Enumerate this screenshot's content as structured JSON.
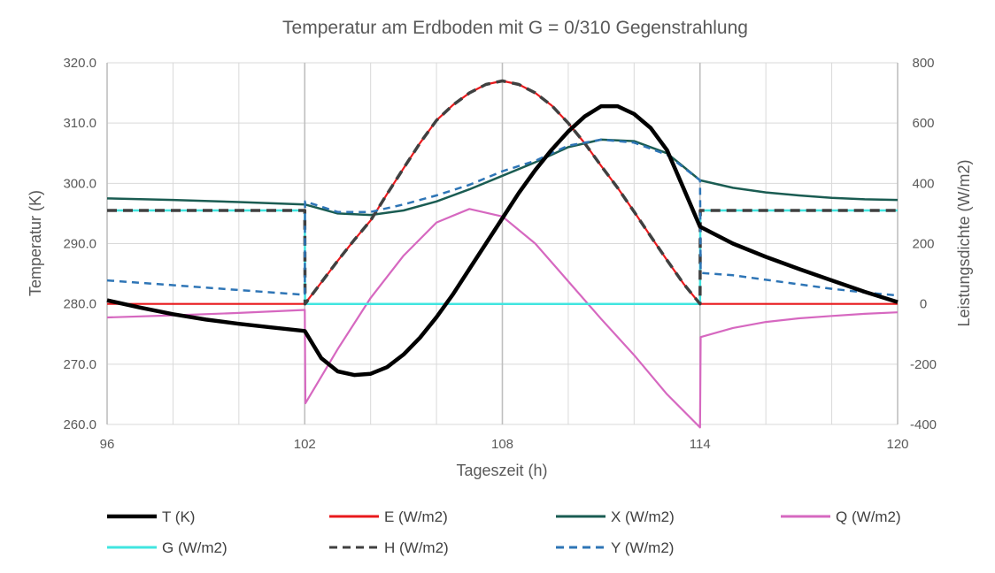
{
  "chart_data": {
    "type": "line",
    "title": "Temperatur am Erdboden mit G = 0/310 Gegenstrahlung",
    "xlabel": "Tageszeit (h)",
    "ylabel": "Temperatur (K)",
    "y2label": "Leistungsdichte  (W/m2)",
    "xlim": [
      96,
      120
    ],
    "ylim": [
      260,
      320
    ],
    "y2lim": [
      -400,
      800
    ],
    "x_ticks": [
      96,
      102,
      108,
      114,
      120
    ],
    "x_tick_labels": [
      "96",
      "102",
      "108",
      "114",
      "120"
    ],
    "y_ticks": [
      260,
      270,
      280,
      290,
      300,
      310,
      320
    ],
    "y_tick_labels": [
      "260.0",
      "270.0",
      "280.0",
      "290.0",
      "300.0",
      "310.0",
      "320.0"
    ],
    "y2_ticks": [
      -400,
      -200,
      0,
      200,
      400,
      600,
      800
    ],
    "y2_tick_labels": [
      "-400",
      "-200",
      "0",
      "200",
      "400",
      "600",
      "800"
    ],
    "grid": true,
    "legend_position": "bottom",
    "series": [
      {
        "name": "T (K)",
        "axis": "left",
        "color": "#000000",
        "dash": "solid",
        "points": [
          [
            96,
            280.6
          ],
          [
            97,
            279.4
          ],
          [
            98,
            278.3
          ],
          [
            99,
            277.4
          ],
          [
            100,
            276.7
          ],
          [
            101,
            276.1
          ],
          [
            102,
            275.5
          ],
          [
            102.5,
            271.0
          ],
          [
            103,
            268.8
          ],
          [
            103.5,
            268.2
          ],
          [
            104,
            268.4
          ],
          [
            104.5,
            269.5
          ],
          [
            105,
            271.6
          ],
          [
            105.5,
            274.4
          ],
          [
            106,
            277.8
          ],
          [
            106.5,
            281.6
          ],
          [
            107,
            285.8
          ],
          [
            107.5,
            290.0
          ],
          [
            108,
            294.2
          ],
          [
            108.5,
            298.4
          ],
          [
            109,
            302.2
          ],
          [
            109.5,
            305.6
          ],
          [
            110,
            308.6
          ],
          [
            110.5,
            311.1
          ],
          [
            111,
            312.8
          ],
          [
            111.5,
            312.8
          ],
          [
            112,
            311.5
          ],
          [
            112.5,
            309.2
          ],
          [
            113,
            305.5
          ],
          [
            113.5,
            299.2
          ],
          [
            114,
            292.8
          ],
          [
            115,
            290.0
          ],
          [
            116,
            287.8
          ],
          [
            117,
            285.8
          ],
          [
            118,
            283.9
          ],
          [
            119,
            282.0
          ],
          [
            120,
            280.3
          ]
        ]
      },
      {
        "name": "E (W/m2)",
        "axis": "right",
        "color": "#e8191c",
        "dash": "solid",
        "points": [
          [
            96,
            0
          ],
          [
            102,
            0
          ],
          [
            102.5,
            71
          ],
          [
            103,
            143
          ],
          [
            103.5,
            212
          ],
          [
            104,
            277
          ],
          [
            104.5,
            365
          ],
          [
            105,
            450
          ],
          [
            105.5,
            534
          ],
          [
            106,
            609
          ],
          [
            106.5,
            660
          ],
          [
            107,
            700
          ],
          [
            107.5,
            728
          ],
          [
            108,
            740
          ],
          [
            108.5,
            728
          ],
          [
            109,
            700
          ],
          [
            109.5,
            658
          ],
          [
            110,
            600
          ],
          [
            110.5,
            533
          ],
          [
            111,
            458
          ],
          [
            111.5,
            385
          ],
          [
            112,
            306
          ],
          [
            112.5,
            225
          ],
          [
            113,
            145
          ],
          [
            113.5,
            67
          ],
          [
            114,
            0
          ],
          [
            120,
            0
          ]
        ]
      },
      {
        "name": "X (W/m2)",
        "axis": "right",
        "color": "#1a5c52",
        "dash": "solid",
        "points": [
          [
            96,
            350
          ],
          [
            98,
            345
          ],
          [
            100,
            338
          ],
          [
            102,
            330
          ],
          [
            103,
            300
          ],
          [
            104,
            295
          ],
          [
            105,
            310
          ],
          [
            106,
            340
          ],
          [
            107,
            380
          ],
          [
            108,
            425
          ],
          [
            109,
            470
          ],
          [
            110,
            520
          ],
          [
            111,
            545
          ],
          [
            112,
            540
          ],
          [
            113,
            500
          ],
          [
            114,
            410
          ],
          [
            115,
            385
          ],
          [
            116,
            370
          ],
          [
            117,
            360
          ],
          [
            118,
            352
          ],
          [
            119,
            347
          ],
          [
            120,
            345
          ]
        ]
      },
      {
        "name": "Q (W/m2)",
        "axis": "right",
        "color": "#d668c0",
        "dash": "solid",
        "points": [
          [
            96,
            -45
          ],
          [
            98,
            -38
          ],
          [
            100,
            -30
          ],
          [
            102,
            -20
          ],
          [
            102.02,
            -330
          ],
          [
            103,
            -150
          ],
          [
            104,
            20
          ],
          [
            105,
            160
          ],
          [
            106,
            270
          ],
          [
            107,
            315
          ],
          [
            108,
            290
          ],
          [
            109,
            200
          ],
          [
            110,
            75
          ],
          [
            111,
            -50
          ],
          [
            112,
            -170
          ],
          [
            113,
            -300
          ],
          [
            114,
            -410
          ],
          [
            114.02,
            -110
          ],
          [
            115,
            -80
          ],
          [
            116,
            -60
          ],
          [
            117,
            -48
          ],
          [
            118,
            -40
          ],
          [
            119,
            -33
          ],
          [
            120,
            -28
          ]
        ]
      },
      {
        "name": "G (W/m2)",
        "axis": "right",
        "color": "#41e5e0",
        "dash": "solid",
        "points": [
          [
            96,
            310
          ],
          [
            102,
            310
          ],
          [
            102.01,
            0
          ],
          [
            114,
            0
          ],
          [
            114.01,
            310
          ],
          [
            120,
            310
          ]
        ]
      },
      {
        "name": "H (W/m2)",
        "axis": "right",
        "color": "#404040",
        "dash": "dash",
        "points": [
          [
            96,
            310
          ],
          [
            102,
            310
          ],
          [
            102.01,
            0
          ],
          [
            102.5,
            71
          ],
          [
            103,
            143
          ],
          [
            103.5,
            212
          ],
          [
            104,
            277
          ],
          [
            104.5,
            365
          ],
          [
            105,
            450
          ],
          [
            105.5,
            534
          ],
          [
            106,
            609
          ],
          [
            106.5,
            660
          ],
          [
            107,
            700
          ],
          [
            107.5,
            728
          ],
          [
            108,
            740
          ],
          [
            108.5,
            728
          ],
          [
            109,
            700
          ],
          [
            109.5,
            658
          ],
          [
            110,
            600
          ],
          [
            110.5,
            533
          ],
          [
            111,
            458
          ],
          [
            111.5,
            385
          ],
          [
            112,
            306
          ],
          [
            112.5,
            225
          ],
          [
            113,
            145
          ],
          [
            113.5,
            67
          ],
          [
            114,
            0
          ],
          [
            114.01,
            310
          ],
          [
            120,
            310
          ]
        ]
      },
      {
        "name": "Y (W/m2)",
        "axis": "right",
        "color": "#2e75b6",
        "dash": "dash",
        "points": [
          [
            96,
            78
          ],
          [
            98,
            62
          ],
          [
            100,
            46
          ],
          [
            102,
            30
          ],
          [
            102.01,
            340
          ],
          [
            103,
            305
          ],
          [
            104,
            305
          ],
          [
            105,
            330
          ],
          [
            106,
            360
          ],
          [
            107,
            395
          ],
          [
            108,
            440
          ],
          [
            109,
            475
          ],
          [
            110,
            525
          ],
          [
            111,
            545
          ],
          [
            112,
            535
          ],
          [
            113,
            495
          ],
          [
            114,
            410
          ],
          [
            114.02,
            103
          ],
          [
            115,
            95
          ],
          [
            116,
            80
          ],
          [
            117,
            65
          ],
          [
            118,
            50
          ],
          [
            119,
            38
          ],
          [
            120,
            28
          ]
        ]
      }
    ]
  }
}
